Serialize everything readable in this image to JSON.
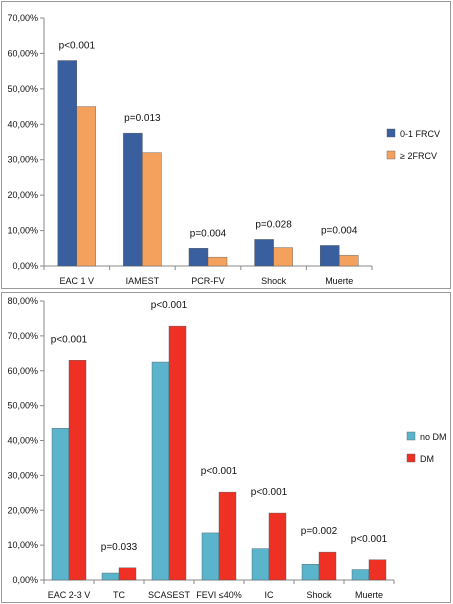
{
  "chart_data": [
    {
      "type": "bar",
      "categories": [
        "EAC 1 V",
        "IAMEST",
        "PCR-FV",
        "Shock",
        "Muerte"
      ],
      "series": [
        {
          "name": "0-1 FRCV",
          "values": [
            58.0,
            37.5,
            5.0,
            7.5,
            5.8
          ],
          "color": "#3a5f9e"
        },
        {
          "name": "≥ 2FRCV",
          "values": [
            45.0,
            32.0,
            2.5,
            5.2,
            3.0
          ],
          "color": "#f5a15e"
        }
      ],
      "annotations": [
        "p<0.001",
        "p=0.013",
        "p=0.004",
        "p=0.028",
        "p=0.004"
      ],
      "yticks": [
        "0,00%",
        "10,00%",
        "20,00%",
        "30,00%",
        "40,00%",
        "50,00%",
        "60,00%",
        "70,00%"
      ],
      "ylim": [
        0,
        70
      ],
      "legend": "right"
    },
    {
      "type": "bar",
      "categories": [
        "EAC 2-3 V",
        "TC",
        "SCASEST",
        "FEVI ≤40%",
        "IC",
        "Shock",
        "Muerte"
      ],
      "series": [
        {
          "name": "no DM",
          "values": [
            43.5,
            2.0,
            62.5,
            13.5,
            9.0,
            4.5,
            3.0
          ],
          "color": "#5ab4cc"
        },
        {
          "name": "DM",
          "values": [
            63.0,
            3.5,
            72.8,
            25.2,
            19.2,
            8.0,
            5.8
          ],
          "color": "#ee3124"
        }
      ],
      "annotations": [
        "p<0.001",
        "p=0.033",
        "p<0.001",
        "p<0.001",
        "p<0.001",
        "p=0.002",
        "p<0.001"
      ],
      "yticks": [
        "0,00%",
        "10,00%",
        "20,00%",
        "30,00%",
        "40,00%",
        "50,00%",
        "60,00%",
        "70,00%",
        "80,00%"
      ],
      "ylim": [
        0,
        80
      ],
      "legend": "right"
    }
  ]
}
